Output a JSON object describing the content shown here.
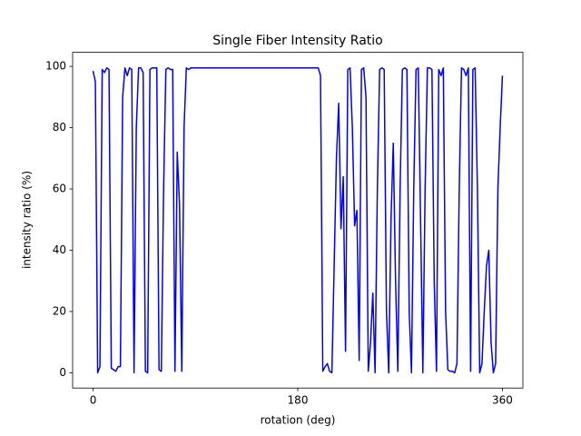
{
  "chart_data": {
    "type": "line",
    "title": "Single Fiber Intensity Ratio",
    "xlabel": "rotation (deg)",
    "ylabel": "intensity ratio (%)",
    "xlim": [
      -18,
      378
    ],
    "ylim": [
      -4.98,
      104.6
    ],
    "xticks": [
      0,
      180,
      360
    ],
    "yticks": [
      0,
      20,
      40,
      60,
      80,
      100
    ],
    "x": [
      0,
      2,
      4,
      6,
      8,
      10,
      12,
      14,
      16,
      18,
      20,
      22,
      24,
      26,
      28,
      30,
      32,
      34,
      36,
      38,
      40,
      42,
      44,
      46,
      48,
      50,
      52,
      54,
      56,
      58,
      60,
      62,
      64,
      66,
      68,
      70,
      72,
      74,
      76,
      78,
      80,
      82,
      84,
      86,
      88,
      90,
      92,
      94,
      96,
      98,
      100,
      102,
      104,
      106,
      108,
      110,
      112,
      114,
      116,
      118,
      120,
      122,
      124,
      126,
      128,
      130,
      132,
      134,
      136,
      138,
      140,
      142,
      144,
      146,
      148,
      150,
      152,
      154,
      156,
      158,
      160,
      162,
      164,
      166,
      168,
      170,
      172,
      174,
      176,
      178,
      180,
      182,
      184,
      186,
      188,
      190,
      192,
      194,
      196,
      198,
      200,
      202,
      204,
      206,
      208,
      210,
      212,
      214,
      216,
      218,
      220,
      222,
      224,
      226,
      228,
      230,
      232,
      234,
      236,
      238,
      240,
      242,
      244,
      246,
      248,
      250,
      252,
      254,
      256,
      258,
      260,
      262,
      264,
      266,
      268,
      270,
      272,
      274,
      276,
      278,
      280,
      282,
      284,
      286,
      288,
      290,
      292,
      294,
      296,
      298,
      300,
      302,
      304,
      306,
      308,
      310,
      312,
      314,
      316,
      318,
      320,
      322,
      324,
      326,
      328,
      330,
      332,
      334,
      336,
      338,
      340,
      342,
      344,
      346,
      348,
      350,
      352,
      354,
      356,
      358,
      360
    ],
    "series": [
      {
        "name": "intensity ratio",
        "color": "#0000ff",
        "values": [
          98.5,
          95,
          0,
          2,
          99,
          98,
          99.5,
          99,
          1.5,
          1,
          0.5,
          2,
          2,
          90,
          99.5,
          97,
          99.5,
          99,
          0,
          80,
          99.5,
          99.5,
          98,
          0.5,
          0,
          99,
          99.5,
          99.5,
          99.5,
          1,
          0.5,
          60,
          99,
          99.5,
          99,
          99,
          0.5,
          72,
          55,
          0.5,
          80,
          99.5,
          99,
          99.5,
          99.5,
          99.5,
          99.5,
          99.5,
          99.5,
          99.5,
          99.5,
          99.5,
          99.5,
          99.5,
          99.5,
          99.5,
          99.5,
          99.5,
          99.5,
          99.5,
          99.5,
          99.5,
          99.5,
          99.5,
          99.5,
          99.5,
          99.5,
          99.5,
          99.5,
          99.5,
          99.5,
          99.5,
          99.5,
          99.5,
          99.5,
          99.5,
          99.5,
          99.5,
          99.5,
          99.5,
          99.5,
          99.5,
          99.5,
          99.5,
          99.5,
          99.5,
          99.5,
          99.5,
          99.5,
          99.5,
          99.5,
          99.5,
          99.5,
          99.5,
          99.5,
          99.5,
          99.5,
          99.5,
          99.5,
          99.5,
          97,
          0.5,
          2,
          3,
          0.5,
          0,
          35,
          70,
          88,
          47,
          64,
          7,
          99,
          99.5,
          80,
          48,
          53,
          4,
          99,
          99.5,
          90,
          0.5,
          10,
          26,
          0,
          60,
          99,
          99.5,
          99,
          20,
          0,
          50,
          75,
          30,
          0.5,
          60,
          99,
          99.5,
          99,
          20,
          0,
          60,
          99,
          99.5,
          50,
          0,
          60,
          99.5,
          99.5,
          99,
          30,
          0.5,
          99,
          97,
          99.5,
          20,
          1,
          0.5,
          0.5,
          0,
          3,
          60,
          99.5,
          99,
          97,
          99.5,
          0.5,
          99,
          99.5,
          60,
          0,
          3,
          20,
          35,
          40,
          10,
          0,
          3,
          60,
          80,
          97
        ]
      }
    ]
  }
}
